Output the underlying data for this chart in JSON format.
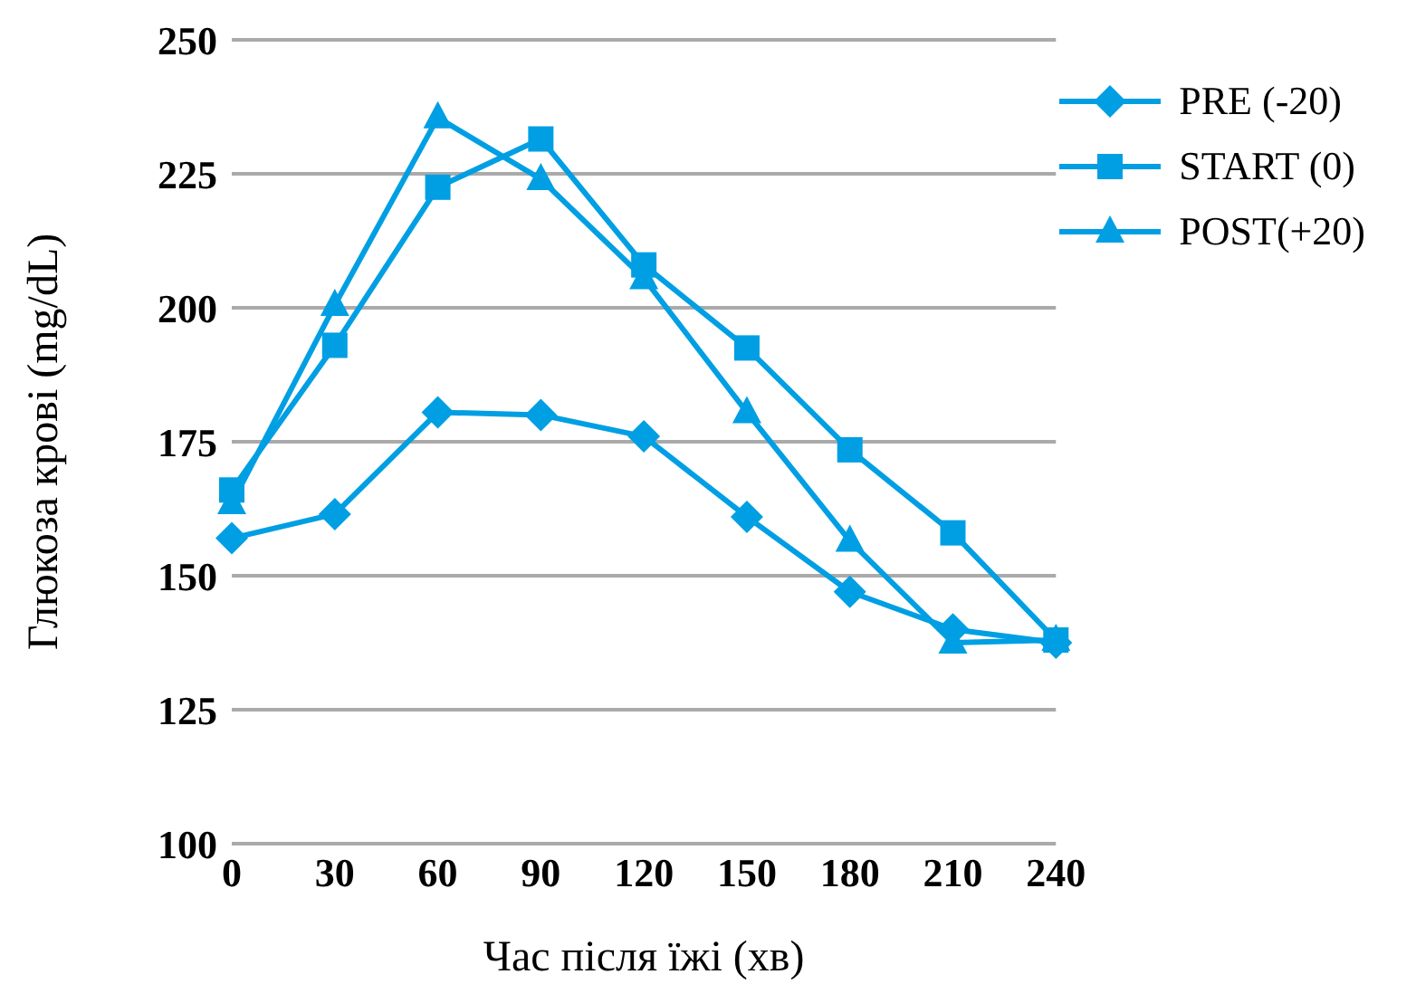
{
  "chart_data": {
    "type": "line",
    "xlabel": "Час після їжі (хв)",
    "ylabel": "Глюкоза крові (mg/dL)",
    "categories": [
      "0",
      "30",
      "60",
      "90",
      "120",
      "150",
      "180",
      "210",
      "240"
    ],
    "series": [
      {
        "name": "PRE (-20)",
        "color": "#009fe3",
        "marker": "diamond",
        "values": [
          157,
          161.5,
          180.5,
          180,
          176,
          161,
          147,
          140,
          137.5
        ]
      },
      {
        "name": "START (0)",
        "color": "#009fe3",
        "marker": "square",
        "values": [
          166,
          193,
          222.5,
          231.5,
          208,
          192.5,
          173.5,
          158,
          138
        ]
      },
      {
        "name": "POST(+20)",
        "color": "#009fe3",
        "marker": "triangle",
        "values": [
          163.5,
          200.5,
          235.5,
          224,
          205.5,
          180.5,
          156.5,
          137.5,
          138
        ]
      }
    ],
    "ylim": [
      100,
      250
    ],
    "yticks": [
      100,
      125,
      150,
      175,
      200,
      225,
      250
    ],
    "grid": "y",
    "legend": "top right",
    "line_style": "solid"
  }
}
